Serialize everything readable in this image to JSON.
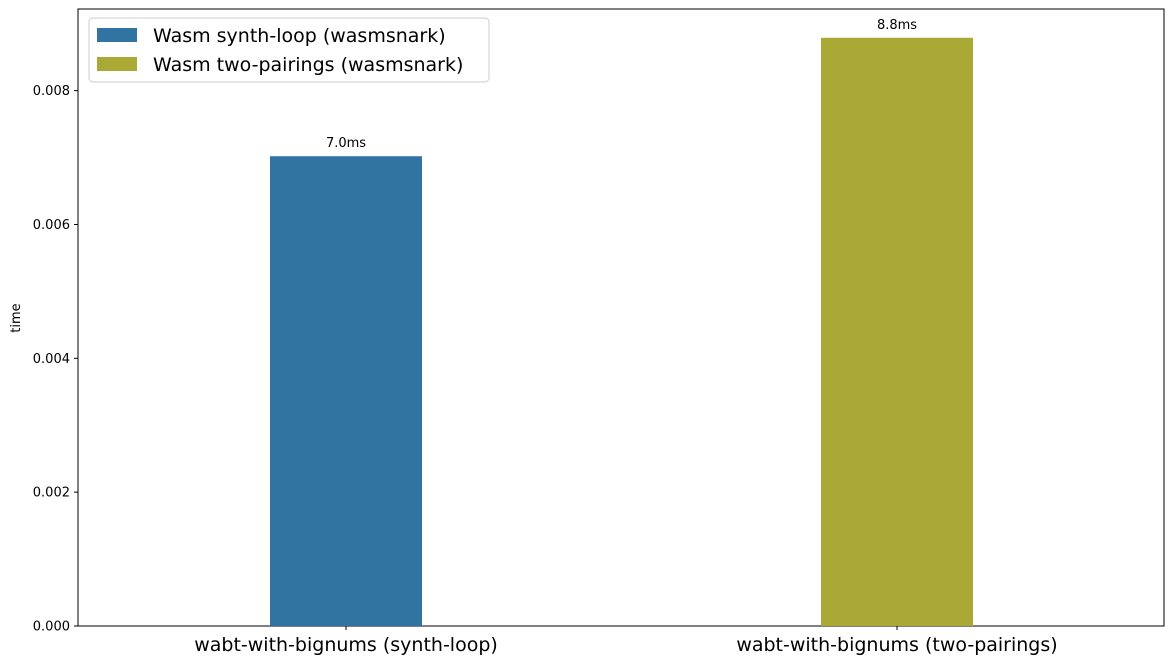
{
  "chart_data": {
    "type": "bar",
    "categories": [
      "wabt-with-bignums (synth-loop)",
      "wabt-with-bignums (two-pairings)"
    ],
    "series": [
      {
        "name": "Wasm synth-loop (wasmsnark)",
        "color": "#3274a1",
        "values": [
          0.00702,
          null
        ],
        "labels": [
          "7.0ms",
          ""
        ]
      },
      {
        "name": "Wasm two-pairings (wasmsnark)",
        "color": "#aaa935",
        "values": [
          null,
          0.00879
        ],
        "labels": [
          "",
          "8.8ms"
        ]
      }
    ],
    "xlabel": "",
    "ylabel": "time",
    "ylim": [
      0,
      0.00922
    ],
    "yticks": [
      "0.000",
      "0.002",
      "0.004",
      "0.006",
      "0.008"
    ],
    "grid": false,
    "legend_position": "top-left"
  }
}
